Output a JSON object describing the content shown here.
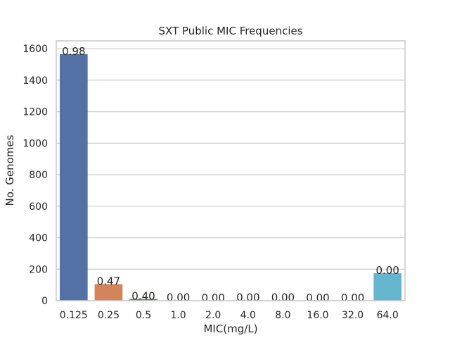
{
  "chart_data": {
    "type": "bar",
    "title": "SXT Public MIC Frequencies",
    "xlabel": "MIC(mg/L)",
    "ylabel": "No. Genomes",
    "categories": [
      "0.125",
      "0.25",
      "0.5",
      "1.0",
      "2.0",
      "4.0",
      "8.0",
      "16.0",
      "32.0",
      "64.0"
    ],
    "values": [
      1565,
      105,
      12,
      2,
      1,
      2,
      2,
      1,
      1,
      175
    ],
    "bar_labels": [
      "0.98",
      "0.47",
      "0.40",
      "0.00",
      "0.00",
      "0.00",
      "0.00",
      "0.00",
      "0.00",
      "0.00"
    ],
    "colors": [
      "#5471a6",
      "#d4845a",
      "#5a9e6a",
      "#c44e52",
      "#8172b2",
      "#937860",
      "#da8bc3",
      "#8c8c8c",
      "#ccb974",
      "#64b5cd"
    ],
    "yticks": [
      0,
      200,
      400,
      600,
      800,
      1000,
      1200,
      1400,
      1600
    ],
    "ylim": [
      0,
      1650
    ],
    "grid": true
  }
}
